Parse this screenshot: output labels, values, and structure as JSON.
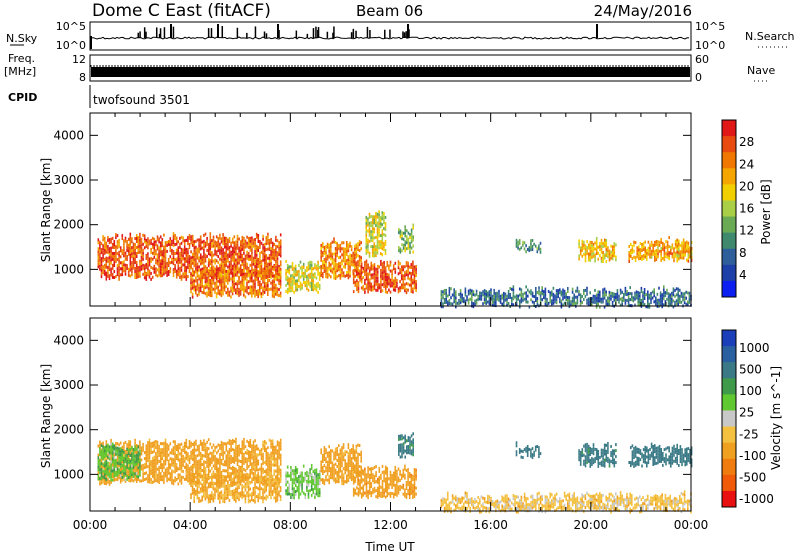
{
  "header": {
    "station": "Dome C East (fitACF)",
    "beam": "Beam 06",
    "date": "24/May/2016"
  },
  "top_panels": {
    "nsky_label": "N.Sky",
    "nsky_ticks": [
      "10^5",
      "10^0"
    ],
    "nsearch_label": "N.Search",
    "nsearch_ticks": [
      "10^5",
      "10^0"
    ],
    "freq_label": "Freq.",
    "freq_unit": "[MHz]",
    "freq_ticks": [
      "12",
      "8"
    ],
    "nave_label": "Nave",
    "nave_ticks": [
      "60",
      "0"
    ],
    "cpid_label": "CPID",
    "cpid_text": "twofsound 3501"
  },
  "colors": {
    "power": [
      "#0b20f0",
      "#1c3fa8",
      "#2f5f9a",
      "#3f8a6e",
      "#6aaa55",
      "#a8cf45",
      "#f2d000",
      "#f5a500",
      "#f07800",
      "#e84a10",
      "#e01818"
    ],
    "velocity": [
      "#e81010",
      "#f05a08",
      "#f07c10",
      "#f0a020",
      "#f4c040",
      "#c8c8c8",
      "#60c830",
      "#3f9a4a",
      "#3a7a86",
      "#2a5fa0",
      "#1a3fb8"
    ]
  },
  "chart_data": [
    {
      "type": "heatmap",
      "panel": "power",
      "ylabel": "Slant Range [km]",
      "ylim": [
        180,
        4500
      ],
      "yticks": [
        1000,
        2000,
        3000,
        4000
      ],
      "xlim": [
        0,
        24
      ],
      "xticks": [
        "00:00",
        "04:00",
        "08:00",
        "12:00",
        "16:00",
        "20:00",
        "00:00"
      ],
      "colorbar_label": "Power [dB]",
      "colorbar_range": [
        0,
        32
      ],
      "colorbar_ticks": [
        "4",
        "8",
        "12",
        "16",
        "20",
        "24",
        "28"
      ],
      "echo_regions": [
        {
          "t": [
            0.3,
            7.6
          ],
          "r": [
            800,
            1700
          ],
          "value": 27
        },
        {
          "t": [
            4.0,
            7.6
          ],
          "r": [
            400,
            1000
          ],
          "value": 25
        },
        {
          "t": [
            7.8,
            9.2
          ],
          "r": [
            500,
            1100
          ],
          "value": 18
        },
        {
          "t": [
            9.2,
            10.8
          ],
          "r": [
            800,
            1600
          ],
          "value": 24
        },
        {
          "t": [
            10.5,
            13.0
          ],
          "r": [
            500,
            1100
          ],
          "value": 27
        },
        {
          "t": [
            11.0,
            11.8
          ],
          "r": [
            1300,
            2200
          ],
          "value": 18
        },
        {
          "t": [
            12.3,
            12.9
          ],
          "r": [
            1400,
            1900
          ],
          "value": 14
        },
        {
          "t": [
            17.0,
            18.0
          ],
          "r": [
            1400,
            1600
          ],
          "value": 10
        },
        {
          "t": [
            19.5,
            21.0
          ],
          "r": [
            1200,
            1600
          ],
          "value": 20
        },
        {
          "t": [
            21.5,
            24.0
          ],
          "r": [
            1200,
            1600
          ],
          "value": 22
        },
        {
          "t": [
            14.0,
            24.0
          ],
          "r": [
            180,
            500
          ],
          "value": 8
        }
      ]
    },
    {
      "type": "heatmap",
      "panel": "velocity",
      "ylabel": "Slant Range [km]",
      "ylim": [
        180,
        4500
      ],
      "yticks": [
        1000,
        2000,
        3000,
        4000
      ],
      "xlim": [
        0,
        24
      ],
      "xticks": [
        "00:00",
        "04:00",
        "08:00",
        "12:00",
        "16:00",
        "20:00",
        "00:00"
      ],
      "xlabel": "Time UT",
      "colorbar_label": "Velocity [m s^-1]",
      "colorbar_ticks": [
        "1000",
        "500",
        "100",
        "25",
        "-25",
        "-100",
        "-500",
        "-1000"
      ],
      "echo_regions": [
        {
          "t": [
            0.3,
            7.6
          ],
          "r": [
            800,
            1700
          ],
          "value": -150
        },
        {
          "t": [
            0.3,
            2.0
          ],
          "r": [
            900,
            1600
          ],
          "value": 80
        },
        {
          "t": [
            4.0,
            7.6
          ],
          "r": [
            400,
            1000
          ],
          "value": -120
        },
        {
          "t": [
            7.8,
            9.2
          ],
          "r": [
            500,
            1100
          ],
          "value": 60
        },
        {
          "t": [
            9.2,
            10.8
          ],
          "r": [
            800,
            1600
          ],
          "value": -150
        },
        {
          "t": [
            10.5,
            13.0
          ],
          "r": [
            500,
            1100
          ],
          "value": -200
        },
        {
          "t": [
            12.3,
            12.9
          ],
          "r": [
            1400,
            1900
          ],
          "value": 300
        },
        {
          "t": [
            17.0,
            18.0
          ],
          "r": [
            1400,
            1600
          ],
          "value": 400
        },
        {
          "t": [
            19.5,
            21.0
          ],
          "r": [
            1200,
            1600
          ],
          "value": 300
        },
        {
          "t": [
            21.5,
            24.0
          ],
          "r": [
            1200,
            1600
          ],
          "value": 350
        },
        {
          "t": [
            14.0,
            24.0
          ],
          "r": [
            180,
            500
          ],
          "value": -60
        }
      ]
    }
  ]
}
